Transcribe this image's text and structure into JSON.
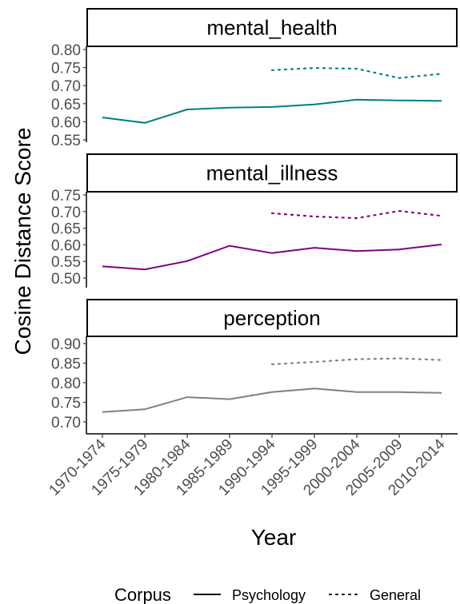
{
  "chart_data": {
    "type": "line",
    "xlabel": "Year",
    "ylabel": "Cosine Distance Score",
    "categories": [
      "1970-1974",
      "1975-1979",
      "1980-1984",
      "1985-1989",
      "1990-1994",
      "1995-1999",
      "2000-2004",
      "2005-2009",
      "2010-2014"
    ],
    "legend": {
      "title": "Corpus",
      "position": "bottom",
      "entries": [
        {
          "label": "Psychology",
          "linetype": "solid"
        },
        {
          "label": "General",
          "linetype": "dotted"
        }
      ]
    },
    "panels": [
      {
        "title": "mental_health",
        "color": "#00807f",
        "ylim": [
          0.55,
          0.8
        ],
        "yticks": [
          0.55,
          0.6,
          0.65,
          0.7,
          0.75,
          0.8
        ],
        "series": [
          {
            "name": "Psychology",
            "linetype": "solid",
            "values": [
              0.612,
              0.597,
              0.634,
              0.639,
              0.641,
              0.648,
              0.661,
              0.659,
              0.658
            ]
          },
          {
            "name": "General",
            "linetype": "dotted",
            "values": [
              null,
              null,
              null,
              null,
              0.743,
              0.749,
              0.747,
              0.721,
              0.733
            ]
          }
        ]
      },
      {
        "title": "mental_illness",
        "color": "#800080",
        "ylim": [
          0.5,
          0.75
        ],
        "yticks": [
          0.5,
          0.55,
          0.6,
          0.65,
          0.7,
          0.75
        ],
        "series": [
          {
            "name": "Psychology",
            "linetype": "solid",
            "values": [
              0.535,
              0.526,
              0.551,
              0.597,
              0.575,
              0.591,
              0.581,
              0.586,
              0.601
            ]
          },
          {
            "name": "General",
            "linetype": "dotted",
            "values": [
              null,
              null,
              null,
              null,
              0.695,
              0.685,
              0.68,
              0.702,
              0.687
            ]
          }
        ]
      },
      {
        "title": "perception",
        "color": "#808080",
        "ylim": [
          0.7,
          0.9
        ],
        "yticks": [
          0.7,
          0.75,
          0.8,
          0.85,
          0.9
        ],
        "series": [
          {
            "name": "Psychology",
            "linetype": "solid",
            "values": [
              0.725,
              0.732,
              0.763,
              0.758,
              0.776,
              0.785,
              0.776,
              0.776,
              0.774
            ]
          },
          {
            "name": "General",
            "linetype": "dotted",
            "values": [
              null,
              null,
              null,
              null,
              0.847,
              0.853,
              0.86,
              0.862,
              0.858
            ]
          }
        ]
      }
    ]
  }
}
